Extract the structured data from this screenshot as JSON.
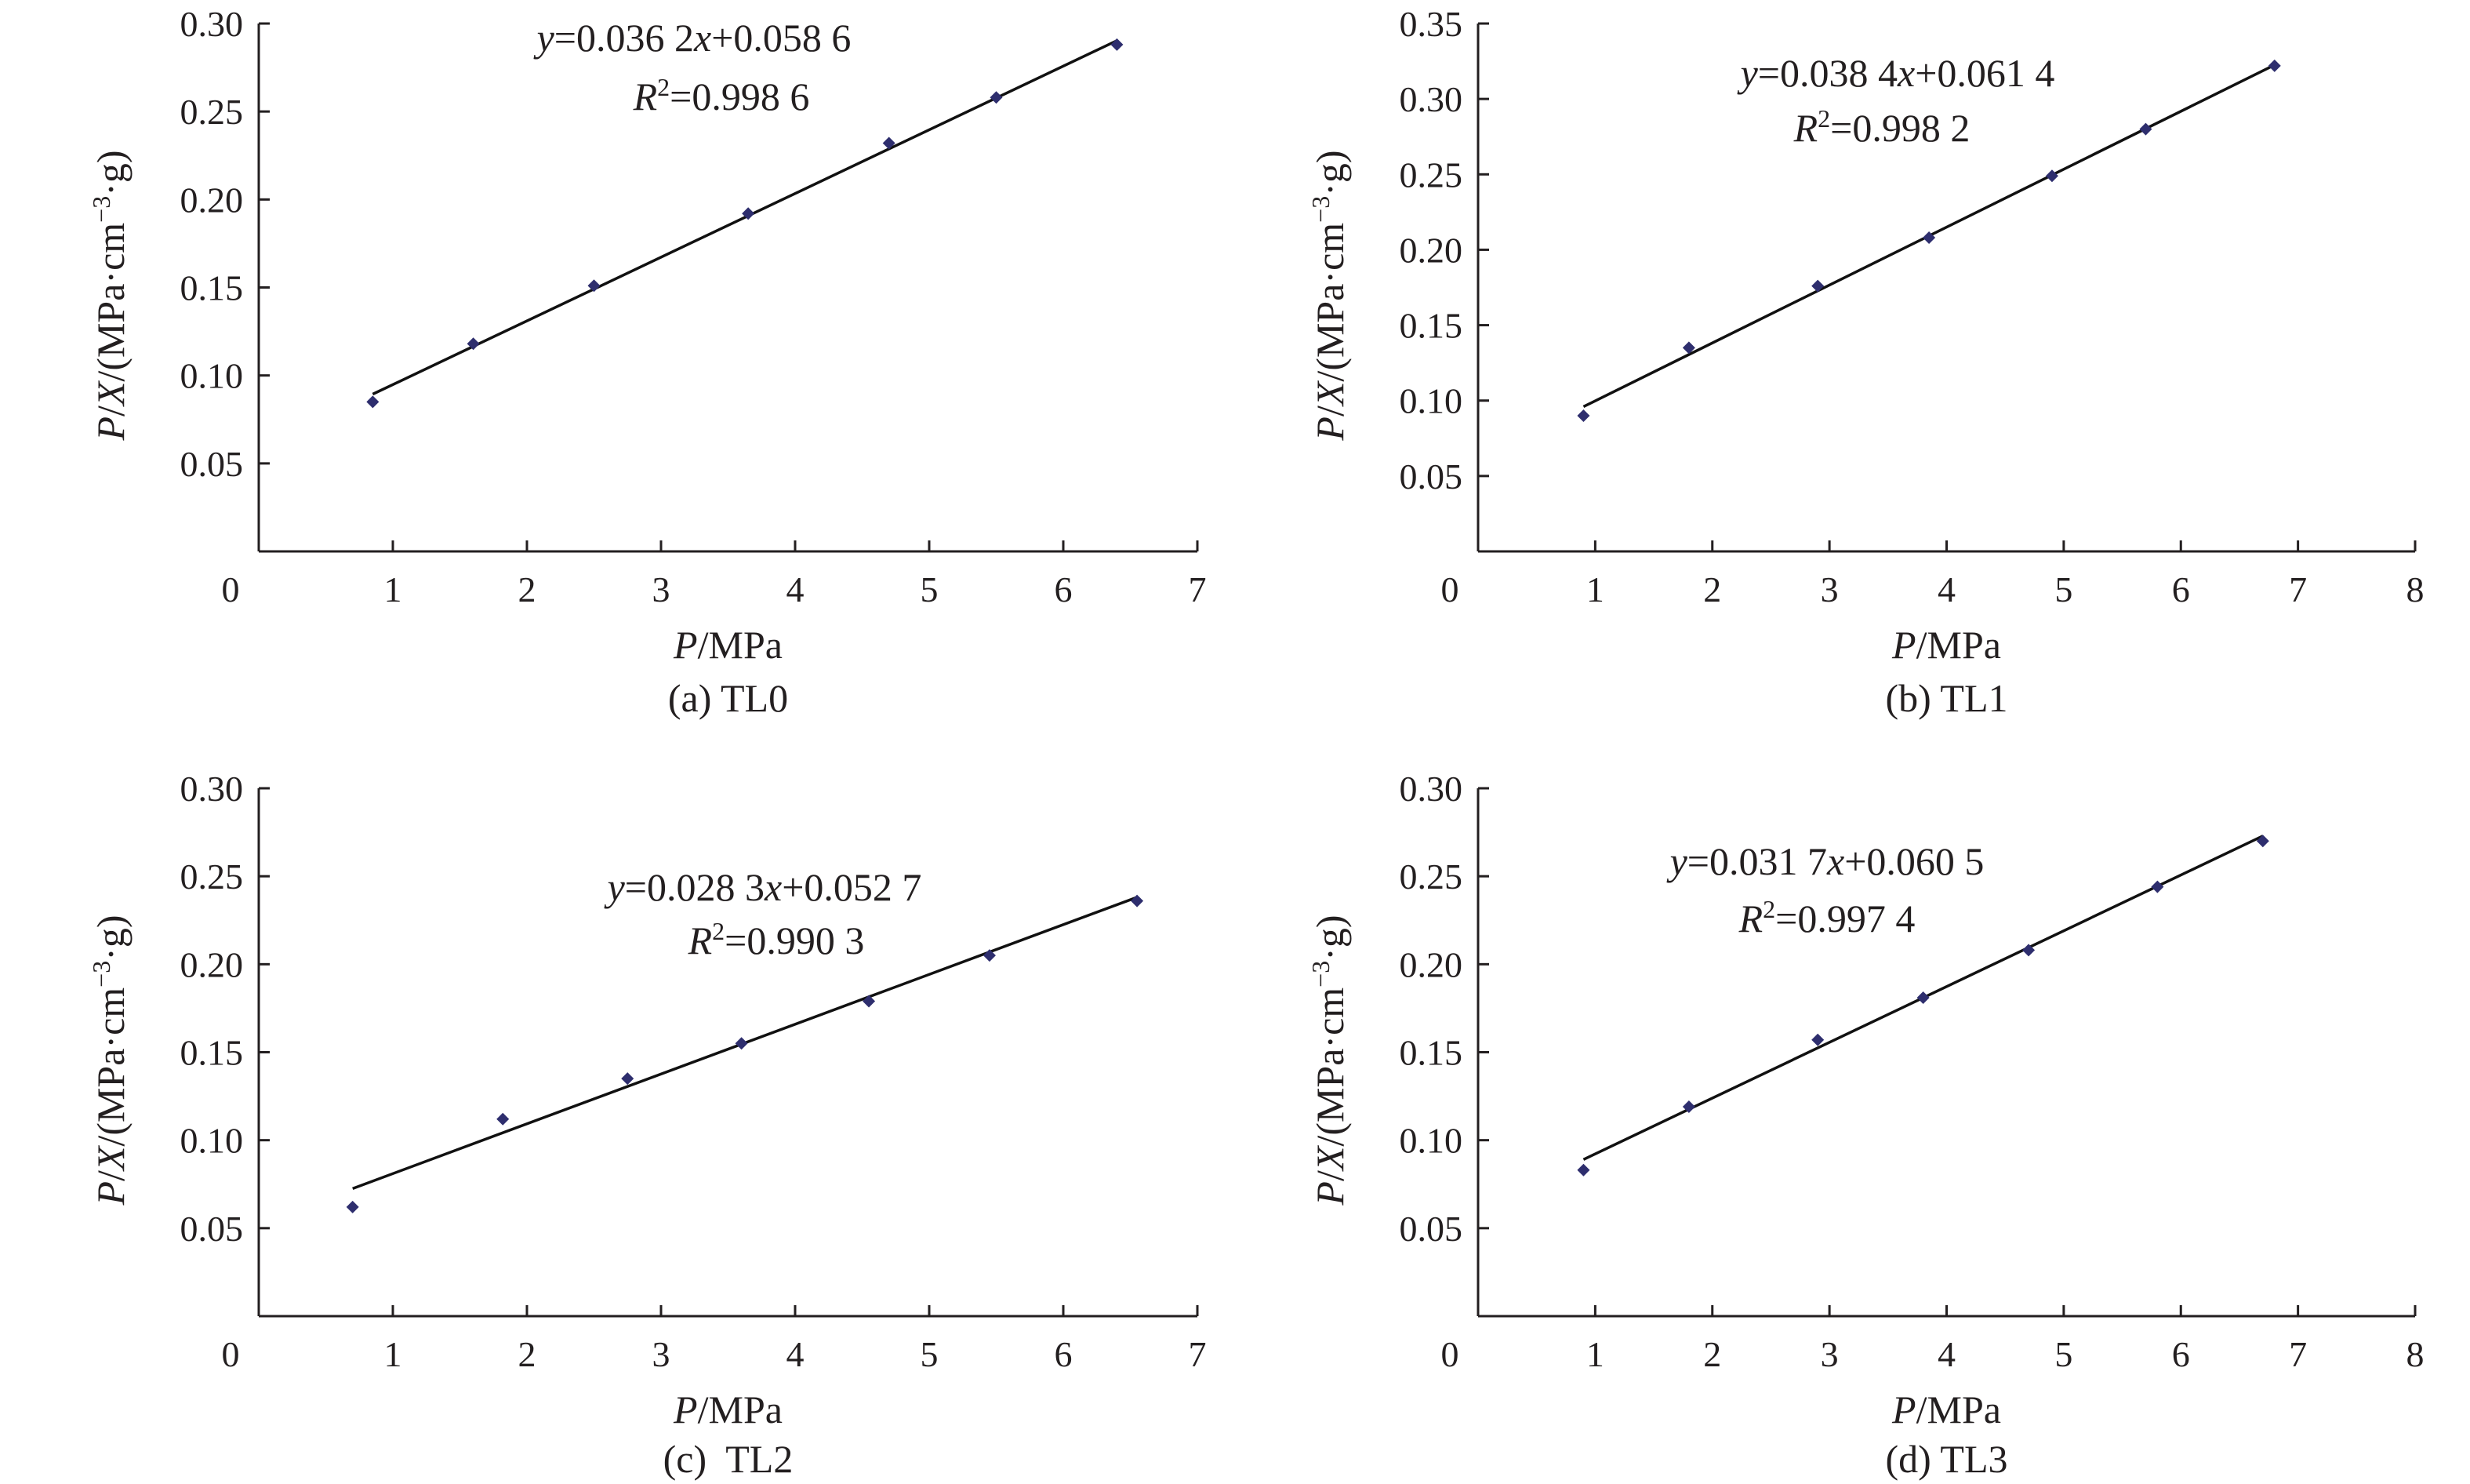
{
  "chart_data": [
    {
      "type": "scatter",
      "caption": "(a) TL0",
      "xlabel": {
        "var": "P",
        "unit": "/MPa"
      },
      "ylabel": {
        "var1": "P",
        "sep1": "/",
        "var2": "X",
        "unit_pre": "/(MPa",
        "unit_mid": "cm",
        "unit_exp": "−3",
        "unit_end": "g)"
      },
      "xlim": [
        0,
        7
      ],
      "ylim": [
        0,
        0.3
      ],
      "xticks": [
        "0",
        "1",
        "2",
        "3",
        "4",
        "5",
        "6",
        "7"
      ],
      "yticks": [
        "0.05",
        "0.10",
        "0.15",
        "0.20",
        "0.25",
        "0.30"
      ],
      "equation": {
        "y": "y",
        "eq_mid": "=0.036 2",
        "x": "x",
        "eq_end": "+0.058 6"
      },
      "r2": {
        "R": "R",
        "sup": "2",
        "value": "=0.998 6"
      },
      "fit": {
        "slope": 0.0362,
        "intercept": 0.0586,
        "x_range": [
          0.85,
          6.4
        ]
      },
      "series": [
        {
          "x": [
            0.85,
            1.6,
            2.5,
            3.65,
            4.7,
            5.5,
            6.4
          ],
          "y": [
            0.085,
            0.118,
            0.151,
            0.192,
            0.232,
            0.258,
            0.288
          ]
        }
      ]
    },
    {
      "type": "scatter",
      "caption": "(b) TL1",
      "xlabel": {
        "var": "P",
        "unit": "/MPa"
      },
      "ylabel": {
        "var1": "P",
        "sep1": "/",
        "var2": "X",
        "unit_pre": "/(MPa",
        "unit_mid": "cm",
        "unit_exp": "−3",
        "unit_end": "g)"
      },
      "xlim": [
        0,
        8
      ],
      "ylim": [
        0,
        0.35
      ],
      "xticks": [
        "0",
        "1",
        "2",
        "3",
        "4",
        "5",
        "6",
        "7",
        "8"
      ],
      "yticks": [
        "0.05",
        "0.10",
        "0.15",
        "0.20",
        "0.25",
        "0.30",
        "0.35"
      ],
      "equation": {
        "y": "y",
        "eq_mid": "=0.038 4",
        "x": "x",
        "eq_end": "+0.061 4"
      },
      "r2": {
        "R": "R",
        "sup": "2",
        "value": "=0.998 2"
      },
      "fit": {
        "slope": 0.0384,
        "intercept": 0.0614,
        "x_range": [
          0.9,
          6.8
        ]
      },
      "series": [
        {
          "x": [
            0.9,
            1.8,
            2.9,
            3.85,
            4.9,
            5.7,
            6.8
          ],
          "y": [
            0.09,
            0.135,
            0.176,
            0.208,
            0.249,
            0.28,
            0.322
          ]
        }
      ]
    },
    {
      "type": "scatter",
      "caption": "(c)  TL2",
      "xlabel": {
        "var": "P",
        "unit": "/MPa"
      },
      "ylabel": {
        "var1": "P",
        "sep1": "/",
        "var2": "X",
        "unit_pre": "/(MPa",
        "unit_mid": "cm",
        "unit_exp": "−3",
        "unit_end": "g)"
      },
      "xlim": [
        0,
        7
      ],
      "ylim": [
        0,
        0.3
      ],
      "xticks": [
        "0",
        "1",
        "2",
        "3",
        "4",
        "5",
        "6",
        "7"
      ],
      "yticks": [
        "0.05",
        "0.10",
        "0.15",
        "0.20",
        "0.25",
        "0.30"
      ],
      "equation": {
        "y": "y",
        "eq_mid": "=0.028 3",
        "x": "x",
        "eq_end": "+0.052 7"
      },
      "r2": {
        "R": "R",
        "sup": "2",
        "value": "=0.990 3"
      },
      "fit": {
        "slope": 0.0283,
        "intercept": 0.0527,
        "x_range": [
          0.7,
          6.55
        ]
      },
      "series": [
        {
          "x": [
            0.7,
            1.82,
            2.75,
            3.6,
            4.55,
            5.45,
            6.55
          ],
          "y": [
            0.062,
            0.112,
            0.135,
            0.155,
            0.179,
            0.205,
            0.236
          ]
        }
      ]
    },
    {
      "type": "scatter",
      "caption": "(d) TL3",
      "xlabel": {
        "var": "P",
        "unit": "/MPa"
      },
      "ylabel": {
        "var1": "P",
        "sep1": "/",
        "var2": "X",
        "unit_pre": "/(MPa",
        "unit_mid": "cm",
        "unit_exp": "−3",
        "unit_end": "g)"
      },
      "xlim": [
        0,
        8
      ],
      "ylim": [
        0,
        0.3
      ],
      "xticks": [
        "0",
        "1",
        "2",
        "3",
        "4",
        "5",
        "6",
        "7",
        "8"
      ],
      "yticks": [
        "0.05",
        "0.10",
        "0.15",
        "0.20",
        "0.25",
        "0.30"
      ],
      "equation": {
        "y": "y",
        "eq_mid": "=0.031 7",
        "x": "x",
        "eq_end": "+0.060 5"
      },
      "r2": {
        "R": "R",
        "sup": "2",
        "value": "=0.997 4"
      },
      "fit": {
        "slope": 0.0317,
        "intercept": 0.0605,
        "x_range": [
          0.9,
          6.7
        ]
      },
      "series": [
        {
          "x": [
            0.9,
            1.8,
            2.9,
            3.8,
            4.7,
            5.8,
            6.7
          ],
          "y": [
            0.083,
            0.119,
            0.157,
            0.181,
            0.208,
            0.244,
            0.27
          ]
        }
      ]
    }
  ],
  "style": {
    "point_color": "#2e2e6e",
    "line_color": "#111111",
    "axis_color": "#231f20"
  }
}
